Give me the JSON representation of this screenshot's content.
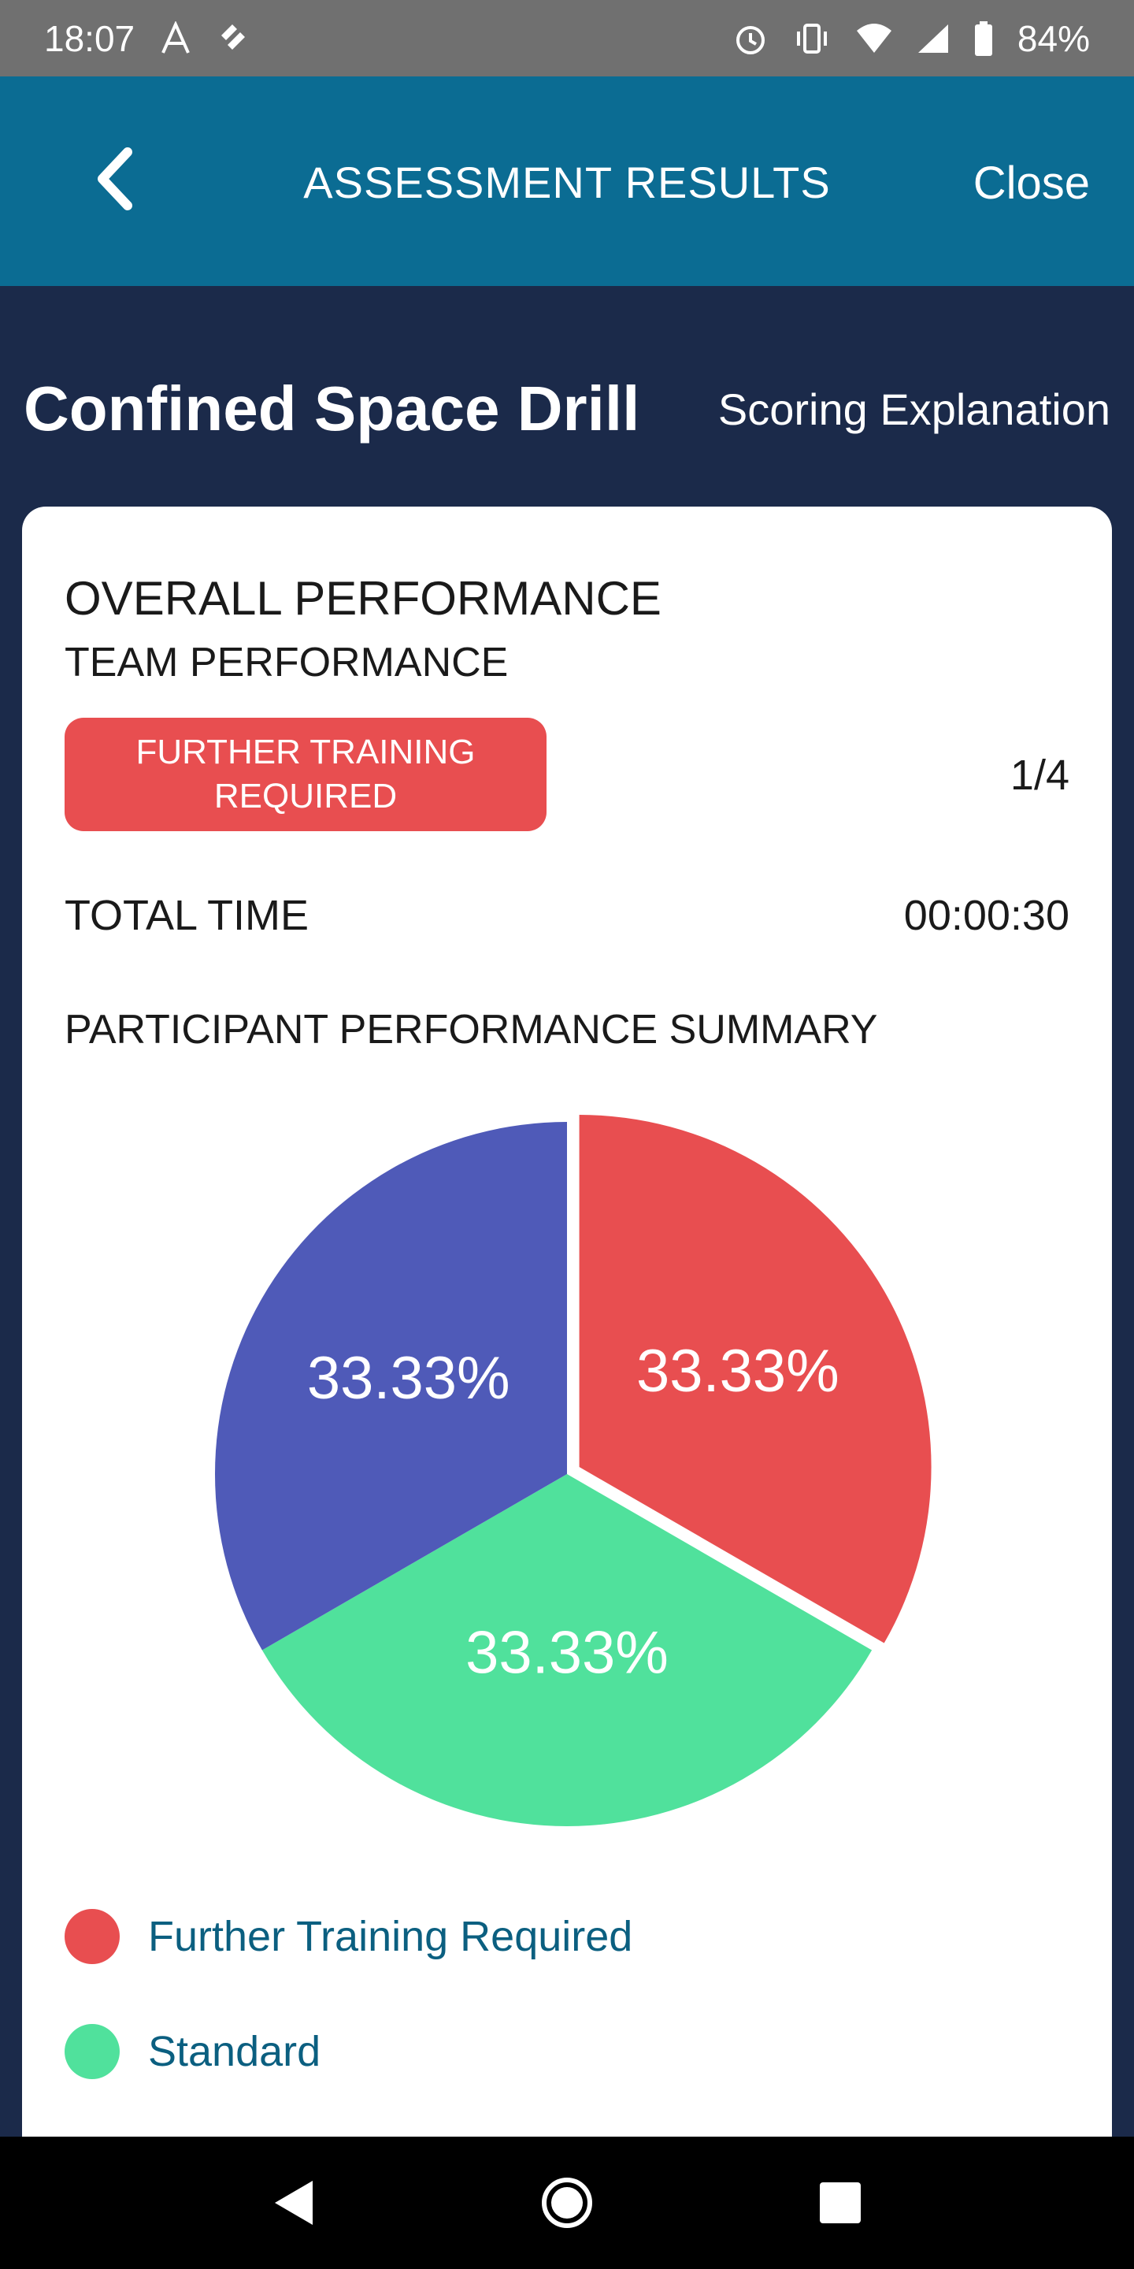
{
  "status_bar": {
    "time": "18:07",
    "battery": "84%",
    "left_icons": [
      "font-icon",
      "notification-app-icon"
    ],
    "right_icons": [
      "alarm-icon",
      "vibrate-icon",
      "wifi-icon",
      "signal-icon",
      "battery-icon"
    ]
  },
  "app_bar": {
    "title": "ASSESSMENT RESULTS",
    "close_label": "Close"
  },
  "page": {
    "title": "Confined Space Drill",
    "scoring_link": "Scoring Explanation"
  },
  "card": {
    "overall_label": "OVERALL PERFORMANCE",
    "team_label": "TEAM PERFORMANCE",
    "badge_text": "FURTHER TRAINING REQUIRED",
    "ratio": "1/4",
    "total_time_label": "TOTAL TIME",
    "total_time_value": "00:00:30",
    "summary_title": "PARTICIPANT PERFORMANCE SUMMARY"
  },
  "chart_data": {
    "type": "pie",
    "slices": [
      {
        "label": "Further Training Required",
        "value": 33.33,
        "display": "33.33%",
        "color": "#e84e50",
        "exploded": true
      },
      {
        "label": "Standard",
        "value": 33.33,
        "display": "33.33%",
        "color": "#50e19c",
        "exploded": false
      },
      {
        "label": "",
        "value": 33.33,
        "display": "33.33%",
        "color": "#4f5ab8",
        "exploded": false
      }
    ],
    "legend": [
      {
        "label": "Further Training Required",
        "color": "#e84e50"
      },
      {
        "label": "Standard",
        "color": "#50e19c"
      }
    ]
  },
  "colors": {
    "background": "#1b2a4a",
    "app_bar": "#0b6c93",
    "badge": "#e84e50",
    "link": "#0b5f80"
  }
}
